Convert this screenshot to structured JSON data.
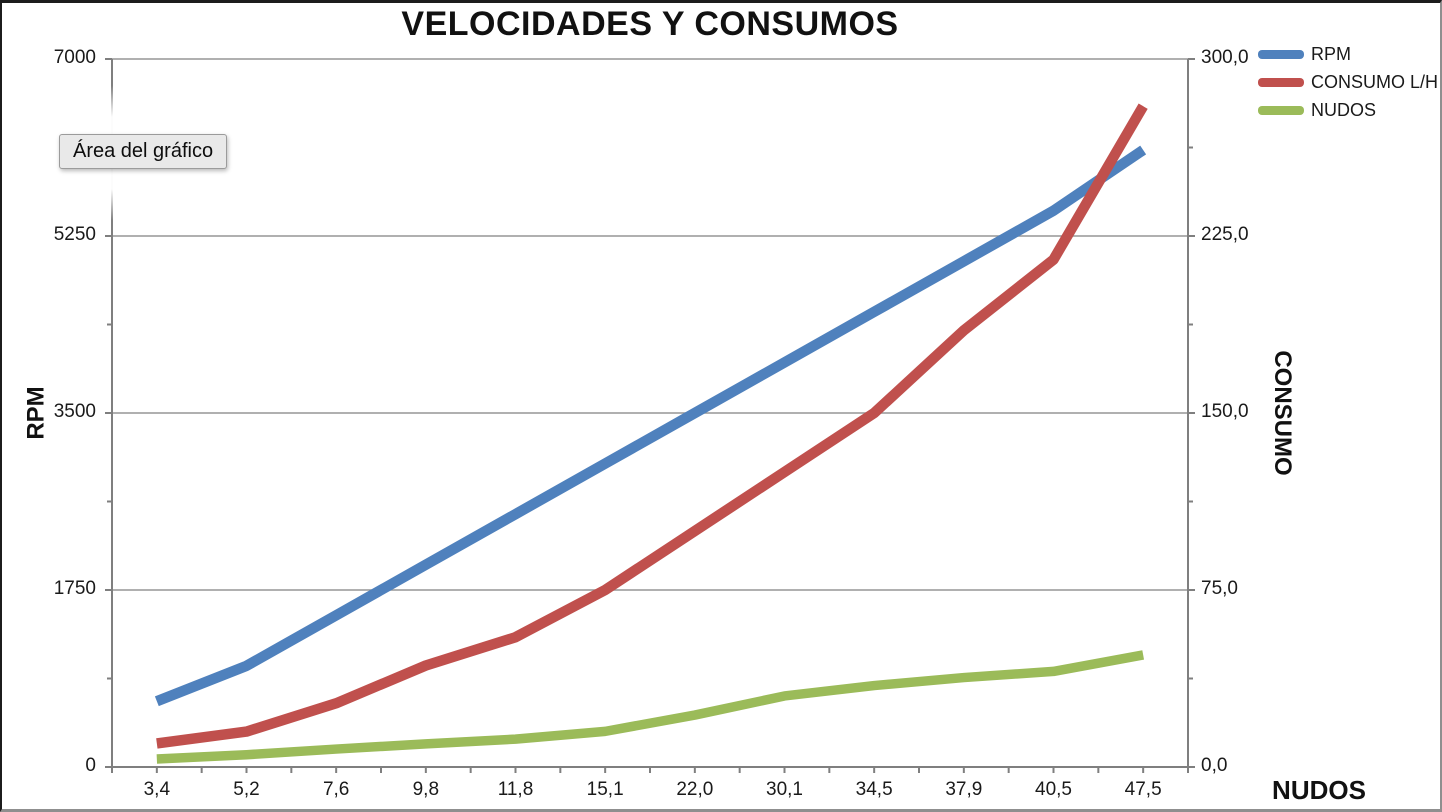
{
  "title": "VELOCIDADES Y CONSUMOS",
  "tooltip": {
    "label": "Área del gráfico"
  },
  "legend": [
    {
      "label": "RPM",
      "color": "#4F81BD"
    },
    {
      "label": "CONSUMO L/H",
      "color": "#C0504D"
    },
    {
      "label": "NUDOS",
      "color": "#9BBB59"
    }
  ],
  "axes": {
    "left": {
      "title": "RPM",
      "tick_labels": [
        "7000",
        "5250",
        "3500",
        "1750",
        "0"
      ]
    },
    "right": {
      "title": "CONSUMO",
      "tick_labels": [
        "300,0",
        "225,0",
        "150,0",
        "75,0",
        "0,0"
      ]
    },
    "x": {
      "title": "NUDOS",
      "tick_labels": [
        "3,4",
        "5,2",
        "7,6",
        "9,8",
        "11,8",
        "15,1",
        "22,0",
        "30,1",
        "34,5",
        "37,9",
        "40,5",
        "47,5"
      ]
    }
  },
  "chart_data": {
    "type": "line",
    "title": "VELOCIDADES Y CONSUMOS",
    "categories": [
      "3,4",
      "5,2",
      "7,6",
      "9,8",
      "11,8",
      "15,1",
      "22,0",
      "30,1",
      "34,5",
      "37,9",
      "40,5",
      "47,5"
    ],
    "x_values": [
      3.4,
      5.2,
      7.6,
      9.8,
      11.8,
      15.1,
      22.0,
      30.1,
      34.5,
      37.9,
      40.5,
      47.5
    ],
    "series": [
      {
        "name": "RPM",
        "axis": "left",
        "color": "#4F81BD",
        "values": [
          650,
          1000,
          1500,
          2000,
          2500,
          3000,
          3500,
          4000,
          4500,
          5000,
          5500,
          6100
        ]
      },
      {
        "name": "CONSUMO L/H",
        "axis": "right",
        "color": "#C0504D",
        "values": [
          10,
          15,
          27,
          43,
          55,
          75,
          100,
          125,
          150,
          185,
          215,
          280
        ]
      },
      {
        "name": "NUDOS",
        "axis": "right",
        "color": "#9BBB59",
        "values": [
          3.4,
          5.2,
          7.6,
          9.8,
          11.8,
          15.1,
          22.0,
          30.1,
          34.5,
          37.9,
          40.5,
          47.5
        ]
      }
    ],
    "left_axis": {
      "label": "RPM",
      "range": [
        0,
        7000
      ],
      "tick_step": 1750,
      "minor_step": 875
    },
    "right_axis": {
      "label": "CONSUMO",
      "range": [
        0,
        300
      ],
      "tick_step": 75,
      "minor_step": 37.5
    },
    "x_axis_label": "NUDOS",
    "grid": true,
    "legend_position": "top-right"
  },
  "colors": {
    "gridline": "#969696",
    "axis": "#7f7f7f",
    "tooltip_bg": "#e9e9e9",
    "tooltip_border": "#9b9b9b",
    "text": "#111111"
  }
}
